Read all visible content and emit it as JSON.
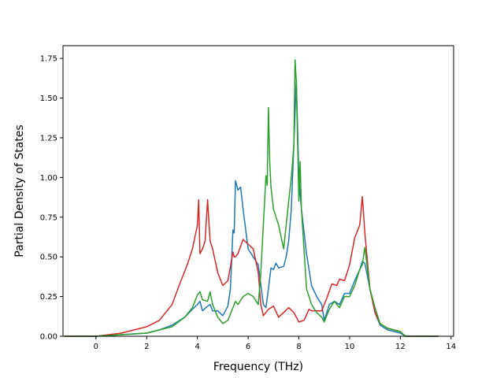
{
  "chart_data": {
    "type": "line",
    "title": "",
    "xlabel": "Frequency (THz)",
    "ylabel": "Partial Density of States",
    "xlim": [
      -1.3,
      14.1
    ],
    "ylim": [
      0,
      1.83
    ],
    "xticks": [
      0,
      2,
      4,
      6,
      8,
      10,
      12,
      14
    ],
    "yticks": [
      0.0,
      0.25,
      0.5,
      0.75,
      1.0,
      1.25,
      1.5,
      1.75
    ],
    "grid": false,
    "legend": "none",
    "series": [
      {
        "color": "#1f77b4",
        "x": [
          -1.25,
          0,
          1,
          2,
          2.5,
          3,
          3.5,
          3.8,
          4.0,
          4.1,
          4.2,
          4.4,
          4.5,
          4.6,
          4.8,
          5.0,
          5.2,
          5.3,
          5.4,
          5.45,
          5.5,
          5.6,
          5.7,
          5.8,
          6.0,
          6.2,
          6.4,
          6.6,
          6.7,
          6.8,
          6.9,
          7.0,
          7.1,
          7.2,
          7.4,
          7.5,
          7.6,
          7.7,
          7.8,
          7.9,
          8.0,
          8.1,
          8.3,
          8.5,
          8.7,
          8.9,
          9.0,
          9.2,
          9.4,
          9.6,
          9.8,
          10.0,
          10.2,
          10.4,
          10.5,
          10.6,
          10.8,
          11.0,
          11.2,
          11.5,
          12.0,
          12.2,
          13.5
        ],
        "y": [
          0.0,
          0.0,
          0.01,
          0.02,
          0.04,
          0.07,
          0.12,
          0.17,
          0.2,
          0.22,
          0.16,
          0.19,
          0.2,
          0.16,
          0.16,
          0.13,
          0.19,
          0.3,
          0.67,
          0.65,
          0.98,
          0.92,
          0.94,
          0.8,
          0.55,
          0.5,
          0.45,
          0.2,
          0.18,
          0.3,
          0.43,
          0.42,
          0.46,
          0.43,
          0.44,
          0.5,
          0.6,
          0.8,
          1.2,
          1.62,
          1.0,
          0.8,
          0.52,
          0.32,
          0.25,
          0.2,
          0.1,
          0.2,
          0.22,
          0.2,
          0.27,
          0.27,
          0.35,
          0.42,
          0.47,
          0.46,
          0.3,
          0.15,
          0.07,
          0.04,
          0.02,
          0.0,
          0.0
        ]
      },
      {
        "color": "#d62728",
        "x": [
          -1.25,
          0,
          1,
          2,
          2.5,
          3,
          3.3,
          3.6,
          3.8,
          4.0,
          4.05,
          4.1,
          4.2,
          4.3,
          4.4,
          4.5,
          4.6,
          4.8,
          5.0,
          5.2,
          5.4,
          5.45,
          5.5,
          5.6,
          5.8,
          6.0,
          6.2,
          6.4,
          6.5,
          6.6,
          6.8,
          7.0,
          7.2,
          7.4,
          7.6,
          7.8,
          8.0,
          8.2,
          8.4,
          8.5,
          8.7,
          8.9,
          9.1,
          9.3,
          9.5,
          9.6,
          9.8,
          10.0,
          10.2,
          10.4,
          10.5,
          10.6,
          10.8,
          11.0,
          11.2,
          11.5,
          12.0,
          12.2,
          13.5
        ],
        "y": [
          0.0,
          0.0,
          0.02,
          0.06,
          0.1,
          0.2,
          0.33,
          0.45,
          0.55,
          0.7,
          0.86,
          0.52,
          0.55,
          0.6,
          0.86,
          0.6,
          0.55,
          0.4,
          0.32,
          0.35,
          0.53,
          0.5,
          0.5,
          0.52,
          0.61,
          0.58,
          0.55,
          0.4,
          0.2,
          0.13,
          0.17,
          0.19,
          0.12,
          0.15,
          0.18,
          0.15,
          0.09,
          0.1,
          0.17,
          0.16,
          0.16,
          0.16,
          0.24,
          0.33,
          0.32,
          0.36,
          0.35,
          0.45,
          0.62,
          0.7,
          0.88,
          0.65,
          0.3,
          0.15,
          0.08,
          0.05,
          0.03,
          0.0,
          0.0
        ]
      },
      {
        "color": "#2ca02c",
        "x": [
          -1.25,
          0,
          1,
          2,
          2.5,
          3,
          3.5,
          3.8,
          4.0,
          4.1,
          4.2,
          4.4,
          4.5,
          4.6,
          4.8,
          5.0,
          5.2,
          5.4,
          5.5,
          5.6,
          5.8,
          6.0,
          6.2,
          6.4,
          6.5,
          6.6,
          6.7,
          6.75,
          6.8,
          6.85,
          6.9,
          7.0,
          7.1,
          7.2,
          7.4,
          7.6,
          7.7,
          7.8,
          7.85,
          7.9,
          8.0,
          8.05,
          8.1,
          8.2,
          8.3,
          8.5,
          8.7,
          8.9,
          9.0,
          9.2,
          9.4,
          9.6,
          9.8,
          10.0,
          10.2,
          10.4,
          10.5,
          10.6,
          10.8,
          11.0,
          11.2,
          11.5,
          12.0,
          12.2,
          13.5
        ],
        "y": [
          0.0,
          0.0,
          0.01,
          0.02,
          0.04,
          0.06,
          0.12,
          0.18,
          0.26,
          0.28,
          0.23,
          0.22,
          0.28,
          0.2,
          0.12,
          0.08,
          0.1,
          0.18,
          0.22,
          0.2,
          0.25,
          0.27,
          0.25,
          0.2,
          0.4,
          0.7,
          1.01,
          0.95,
          1.44,
          1.1,
          0.94,
          0.8,
          0.75,
          0.7,
          0.55,
          0.85,
          1.0,
          1.2,
          1.74,
          1.6,
          0.85,
          1.1,
          0.8,
          0.55,
          0.3,
          0.2,
          0.15,
          0.12,
          0.09,
          0.17,
          0.22,
          0.18,
          0.25,
          0.25,
          0.32,
          0.42,
          0.45,
          0.56,
          0.3,
          0.18,
          0.08,
          0.05,
          0.03,
          0.0,
          0.0
        ]
      }
    ]
  }
}
